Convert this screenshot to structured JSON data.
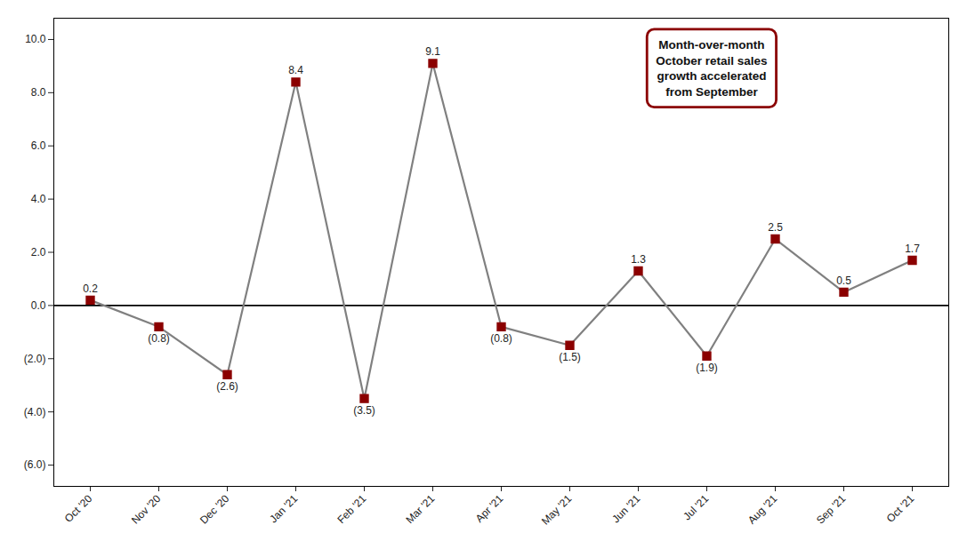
{
  "chart_data": {
    "type": "line",
    "categories": [
      "Oct '20",
      "Nov '20",
      "Dec '20",
      "Jan '21",
      "Feb '21",
      "Mar '21",
      "Apr '21",
      "May '21",
      "Jun '21",
      "Jul '21",
      "Aug '21",
      "Sep '21",
      "Oct '21"
    ],
    "values": [
      0.2,
      -0.8,
      -2.6,
      8.4,
      -3.5,
      9.1,
      -0.8,
      -1.5,
      1.3,
      -1.9,
      2.5,
      0.5,
      1.7
    ],
    "value_labels": [
      "0.2",
      "(0.8)",
      "(2.6)",
      "8.4",
      "(3.5)",
      "9.1",
      "(0.8)",
      "(1.5)",
      "1.3",
      "(1.9)",
      "2.5",
      "0.5",
      "1.7"
    ],
    "data_labels": true,
    "color": "#808080",
    "colors": [
      "#8B0000",
      "#8B0000",
      "#8B0000",
      "#8B0000",
      "#8B0000",
      "#8B0000",
      "#8B0000",
      "#8B0000",
      "#8B0000",
      "#8B0000",
      "#8B0000",
      "#8B0000",
      "#8B0000"
    ],
    "marker": "square",
    "ylim": [
      -6.8,
      10.8
    ],
    "yticks": [
      {
        "value": -6.0,
        "label": "(6.0)"
      },
      {
        "value": -4.0,
        "label": "(4.0)"
      },
      {
        "value": -2.0,
        "label": "(2.0)"
      },
      {
        "value": 0.0,
        "label": "0.0"
      },
      {
        "value": 2.0,
        "label": "2.0"
      },
      {
        "value": 4.0,
        "label": "4.0"
      },
      {
        "value": 6.0,
        "label": "6.0"
      },
      {
        "value": 8.0,
        "label": "8.0"
      },
      {
        "value": 10.0,
        "label": "10.0"
      }
    ],
    "annotation": "Month-over-month\nOctober retail sales\ngrowth accelerated\nfrom September",
    "grid": false
  }
}
